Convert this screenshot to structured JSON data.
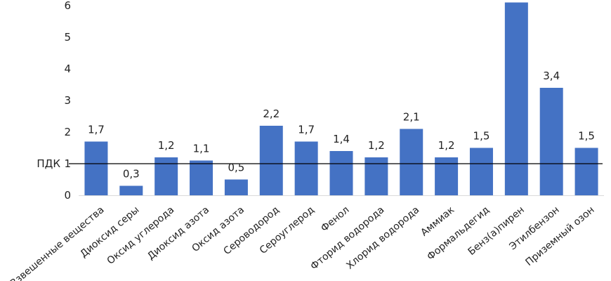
{
  "chart_data": {
    "type": "bar",
    "categories": [
      "Взвешенные вещества",
      "Диоксид серы",
      "Оксид углерода",
      "Диоксид азота",
      "Оксид азота",
      "Сероводород",
      "Сероуглерод",
      "Фенол",
      "Фторид водорода",
      "Хлорид водорода",
      "Аммиак",
      "Формальдегид",
      "Бенз(а)пирен",
      "Этилбензон",
      "Приземный озон"
    ],
    "values": [
      1.7,
      0.3,
      1.2,
      1.1,
      0.5,
      2.2,
      1.7,
      1.4,
      1.2,
      2.1,
      1.2,
      1.5,
      6.1,
      3.4,
      1.5
    ],
    "data_labels": [
      "1,7",
      "0,3",
      "1,2",
      "1,1",
      "0,5",
      "2,2",
      "1,7",
      "1,4",
      "1,2",
      "2,1",
      "1,2",
      "1,5",
      "",
      "3,4",
      "1,5"
    ],
    "y_ticks": [
      0,
      1,
      2,
      3,
      4,
      5,
      6
    ],
    "ylim": [
      0,
      6
    ],
    "reference_line": {
      "label": "ПДК",
      "value": 1
    },
    "bar_color": "#4472c4",
    "grid": false,
    "title": "",
    "xlabel": "",
    "ylabel": ""
  }
}
